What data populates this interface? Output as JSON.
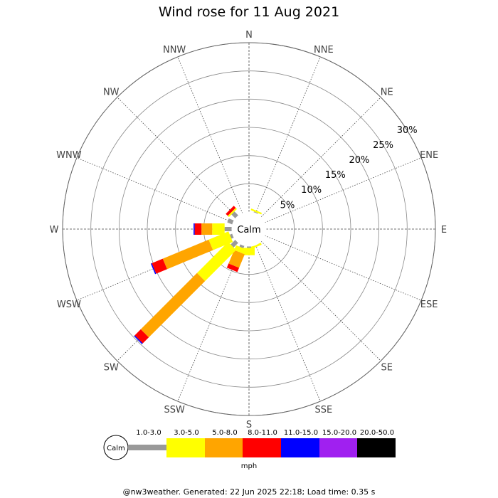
{
  "title": "Wind rose for 11 Aug 2021",
  "footer": "@nw3weather. Generated: 22 Jun 2025 22:18; Load time: 0.35 s",
  "calm_label": "Calm",
  "unit_label": "mph",
  "directions": [
    "N",
    "NNE",
    "NE",
    "ENE",
    "E",
    "ESE",
    "SE",
    "SSE",
    "S",
    "SSW",
    "SW",
    "WSW",
    "W",
    "WNW",
    "NW",
    "NNW"
  ],
  "ring_labels": [
    "5%",
    "10%",
    "15%",
    "20%",
    "25%",
    "30%"
  ],
  "speed_bins": [
    {
      "label": "1.0-3.0",
      "color": "#999999"
    },
    {
      "label": "3.0-5.0",
      "color": "#ffff00"
    },
    {
      "label": "5.0-8.0",
      "color": "#ffa500"
    },
    {
      "label": "8.0-11.0",
      "color": "#ff0000"
    },
    {
      "label": "11.0-15.0",
      "color": "#0000ff"
    },
    {
      "label": "15.0-20.0",
      "color": "#a020f0"
    },
    {
      "label": "20.0-50.0",
      "color": "#000000"
    }
  ],
  "chart_data": {
    "type": "wind-rose",
    "title": "Wind rose for 11 Aug 2021",
    "unit": "mph",
    "radial_max_percent": 30,
    "radial_ticks": [
      5,
      10,
      15,
      20,
      25,
      30
    ],
    "directions": [
      "N",
      "NNE",
      "NE",
      "ENE",
      "E",
      "ESE",
      "SE",
      "SSE",
      "S",
      "SSW",
      "SW",
      "WSW",
      "W",
      "WNW",
      "NW",
      "NNW"
    ],
    "bins": [
      "1.0-3.0",
      "3.0-5.0",
      "5.0-8.0",
      "8.0-11.0",
      "11.0-15.0",
      "15.0-20.0",
      "20.0-50.0"
    ],
    "cumulative_percent": {
      "N": [
        0,
        0,
        0,
        0,
        0,
        0,
        0
      ],
      "NNE": [
        0.2,
        0.5,
        0.5,
        0.5,
        0.5,
        0.5,
        0.5
      ],
      "NE": [
        0,
        0,
        0,
        0,
        0,
        0,
        0
      ],
      "ENE": [
        0,
        0,
        0,
        0,
        0,
        0,
        0
      ],
      "E": [
        0,
        0,
        0,
        0,
        0,
        0,
        0
      ],
      "ESE": [
        0,
        0,
        0,
        0,
        0,
        0,
        0
      ],
      "SE": [
        0,
        0,
        0,
        0,
        0,
        0,
        0
      ],
      "SSE": [
        0,
        0.4,
        0.4,
        0.4,
        0.4,
        0.4,
        0.4
      ],
      "S": [
        0.3,
        1.6,
        1.6,
        1.6,
        1.6,
        1.6,
        1.6
      ],
      "SSW": [
        0.5,
        1.4,
        4.0,
        4.8,
        4.8,
        4.8,
        4.8
      ],
      "SW": [
        1.2,
        9.0,
        23.1,
        24.6,
        24.8,
        24.8,
        24.8
      ],
      "WSW": [
        0.5,
        4.3,
        13.1,
        15.2,
        15.4,
        15.4,
        15.4
      ],
      "W": [
        1.3,
        3.5,
        5.4,
        6.6,
        6.8,
        6.8,
        6.8
      ],
      "WNW": [
        1.0,
        1.0,
        1.0,
        1.0,
        1.0,
        1.0,
        1.0
      ],
      "NW": [
        1.0,
        1.3,
        1.3,
        1.8,
        1.8,
        1.8,
        1.8
      ],
      "NNW": [
        0,
        0,
        0,
        0,
        0,
        0,
        0
      ]
    }
  }
}
